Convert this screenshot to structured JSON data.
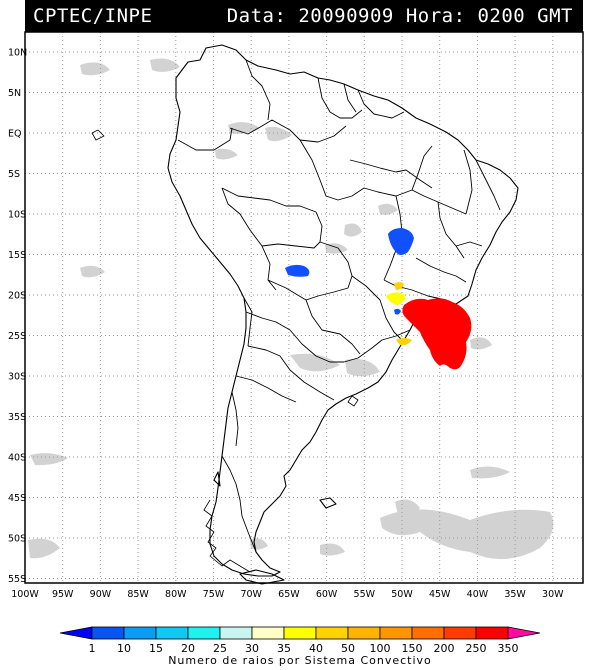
{
  "header": {
    "source": "CPTEC/INPE",
    "date_label": "Data:",
    "date_value": "20090909",
    "hour_label": "Hora:",
    "hour_value": "0200 GMT"
  },
  "map": {
    "lat_labels": [
      "10N",
      "5N",
      "EQ",
      "5S",
      "10S",
      "15S",
      "20S",
      "25S",
      "30S",
      "35S",
      "40S",
      "45S",
      "50S",
      "55S"
    ],
    "lon_labels": [
      "100W",
      "95W",
      "90W",
      "85W",
      "80W",
      "75W",
      "70W",
      "65W",
      "60W",
      "55W",
      "50W",
      "45W",
      "40W",
      "35W",
      "30W"
    ],
    "grid": "dotted",
    "extent": {
      "lon": [
        -100,
        -27
      ],
      "lat": [
        -56,
        13
      ]
    }
  },
  "colorbar": {
    "ticks": [
      "1",
      "10",
      "15",
      "20",
      "25",
      "30",
      "35",
      "40",
      "50",
      "100",
      "150",
      "200",
      "250",
      "350"
    ],
    "colors": [
      "#0000ff",
      "#0a55f0",
      "#0e9cf2",
      "#11c8f2",
      "#20f0f0",
      "#c8f5f0",
      "#ffffc8",
      "#ffff00",
      "#ffd200",
      "#ffb400",
      "#ff9600",
      "#ff6e00",
      "#ff3c00",
      "#ff0000",
      "#ff0aa0"
    ],
    "label": "Numero de raios por Sistema Convectivo"
  },
  "lightning_clusters": [
    {
      "name": "central-brazil",
      "lon": -50.3,
      "lat": -13.2,
      "color": "#1050ff"
    },
    {
      "name": "bolivia",
      "lon": -64.3,
      "lat": -17.6,
      "color": "#1050ff"
    },
    {
      "name": "mato-grosso-sul-1",
      "lon": -50.2,
      "lat": -18.9,
      "color": "#ffd200"
    },
    {
      "name": "mato-grosso-sul-2",
      "lon": -50.5,
      "lat": -20.4,
      "color": "#ffff00"
    },
    {
      "name": "parana-blue",
      "lon": -50.6,
      "lat": -22.0,
      "color": "#1050ff"
    },
    {
      "name": "santa-catarina",
      "lon": -49.4,
      "lat": -25.9,
      "color": "#ffd200"
    },
    {
      "name": "sao-paulo-red",
      "lon": -45.0,
      "lat": -25.3,
      "color": "#ff0000"
    }
  ]
}
